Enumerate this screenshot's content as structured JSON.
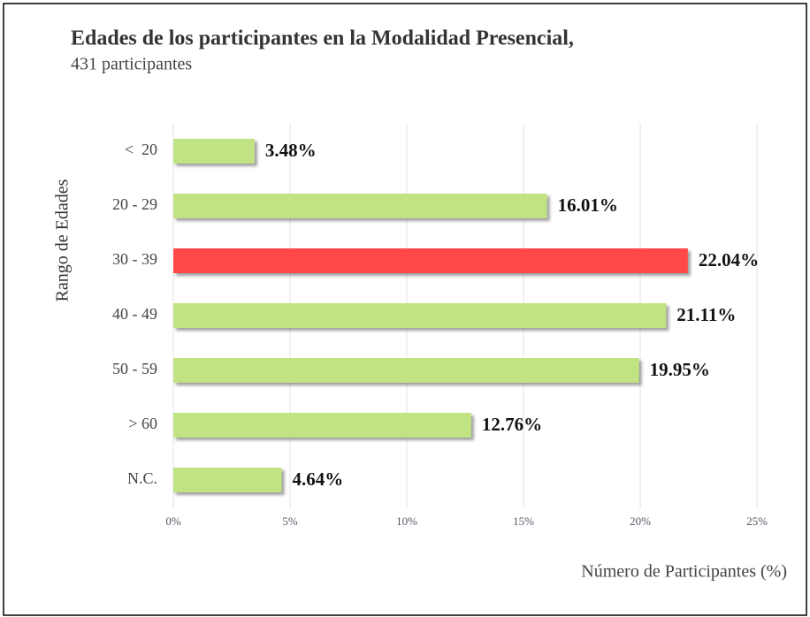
{
  "chart_data": {
    "type": "barh",
    "title": "Edades de los participantes en la Modalidad Presencial,",
    "subtitle": "431 participantes",
    "y_label": "Rango de Edades",
    "x_label": "Número de Participantes (%)",
    "categories": [
      "<  20",
      "20 - 29",
      "30 - 39",
      "40 - 49",
      "50 - 59",
      "> 60",
      "N.C."
    ],
    "values": [
      3.48,
      16.01,
      22.04,
      21.11,
      19.95,
      12.76,
      4.64
    ],
    "value_labels": [
      "3.48%",
      "16.01%",
      "22.04%",
      "21.11%",
      "19.95%",
      "12.76%",
      "4.64%"
    ],
    "colors": [
      "#c1e384",
      "#c1e384",
      "#ff4a4a",
      "#c1e384",
      "#c1e384",
      "#c1e384",
      "#c1e384"
    ],
    "xlim": [
      0,
      25
    ],
    "xticks": [
      {
        "value": 0,
        "label": "0%"
      },
      {
        "value": 5,
        "label": "5%"
      },
      {
        "value": 10,
        "label": "10%"
      },
      {
        "value": 15,
        "label": "15%"
      },
      {
        "value": 20,
        "label": "20%"
      },
      {
        "value": 25,
        "label": "25%"
      }
    ],
    "grid": true
  }
}
